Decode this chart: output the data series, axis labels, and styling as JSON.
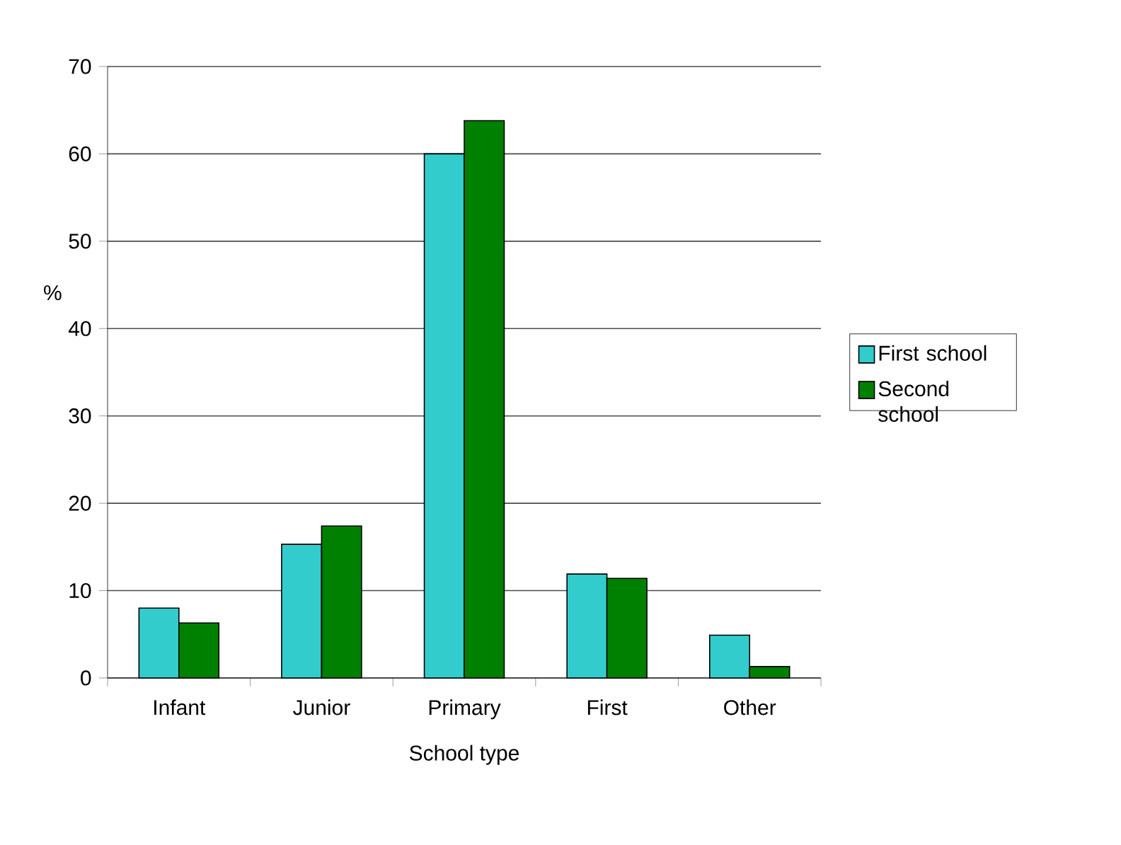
{
  "chart_data": {
    "type": "bar",
    "xlabel": "School type",
    "ylabel": "%",
    "categories": [
      "Infant",
      "Junior",
      "Primary",
      "First",
      "Other"
    ],
    "series": [
      {
        "name": "First school",
        "color": "#33cccc",
        "values": [
          8.0,
          15.3,
          60.0,
          11.9,
          4.9
        ]
      },
      {
        "name": "Second school",
        "color": "#008000",
        "values": [
          6.3,
          17.4,
          63.8,
          11.4,
          1.3
        ]
      }
    ],
    "ylim": [
      0,
      70
    ],
    "yticks": [
      0,
      10,
      20,
      30,
      40,
      50,
      60,
      70
    ],
    "grid": "y",
    "legend": "right"
  }
}
